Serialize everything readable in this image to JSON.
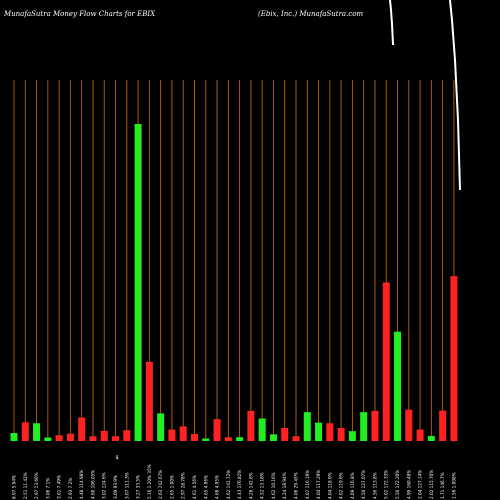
{
  "chart_data": {
    "type": "bar",
    "title_left": "MunafaSutra  Money Flow  Charts for EBIX",
    "title_right": "(Ebix, Inc.) MunafaSutra.com",
    "y_min": 0,
    "y_max": 100,
    "ylabel": "",
    "xlabel": "",
    "grid": "vertical",
    "colors": {
      "up": "#22ee22",
      "down": "#ff2222",
      "grid": "#b8660b",
      "line": "#ffffff",
      "text": "#ffffff"
    },
    "bar_values": [
      2.5,
      5.9,
      5.6,
      1.1,
      1.8,
      2.3,
      7.4,
      1.5,
      3.2,
      1.5,
      3.4,
      100,
      25,
      8.7,
      3.6,
      4.6,
      2.2,
      0.8,
      6.9,
      1.2,
      1.2,
      9.5,
      7.1,
      2.1,
      4.1,
      1.5,
      9.1,
      5.8,
      5.6,
      4.1,
      3.1,
      9.1,
      9.5,
      50,
      34.5,
      9.9,
      3.6,
      1.6,
      9.6,
      52
    ],
    "bar_colors": [
      "up",
      "down",
      "up",
      "up",
      "down",
      "down",
      "down",
      "down",
      "down",
      "down",
      "down",
      "up",
      "down",
      "up",
      "down",
      "down",
      "down",
      "up",
      "down",
      "down",
      "up",
      "down",
      "up",
      "up",
      "down",
      "down",
      "up",
      "up",
      "down",
      "down",
      "up",
      "up",
      "down",
      "down",
      "up",
      "down",
      "down",
      "up",
      "down",
      "down"
    ],
    "categories": [
      "8.97 5.94%",
      "2.51 11.42%",
      "2.97 13.66%",
      "3.06 7.1%",
      "3.01 7.49%",
      "2.93 7.2%",
      "4.48 114.98%",
      "4.60 106.05%",
      "3.02 124.6%",
      "3.09 93.9%",
      "3.07 111.3%",
      "3.27 33.5%",
      "5.16 1.20% 35%",
      "2.63 742.67%",
      "2.65 1.00%",
      "2.97 28.78%",
      "4.61 4.56%",
      "4.65 4.96%",
      "4.68 4.95%",
      "4.62 141.72%",
      "4.43 176.82%",
      "4.28 142.6%",
      "4.52 13.18%",
      "4.62 10.16%",
      "4.24 18.94%",
      "4.06 29.45%",
      "4.07 116.19%",
      "4.04 117.29%",
      "4.04 118.9%",
      "4.02 119.6%",
      "4.09 116.8%",
      "4.50 127.07%",
      "4.56 113.8%",
      "5.02 172.33%",
      "5.50 172.20%",
      "4.99 160.48%",
      "2.04 127.14%",
      "2.02 115.70%",
      "1.71 146.7%",
      "1.56 1.008%"
    ],
    "money_line": [
      [
        390,
        0
      ],
      [
        391,
        10
      ],
      [
        392,
        24
      ],
      [
        393,
        44
      ],
      [
        394,
        44
      ],
      [
        450,
        0
      ],
      [
        452,
        20
      ],
      [
        455,
        60
      ],
      [
        458,
        120
      ],
      [
        460,
        190
      ]
    ]
  }
}
